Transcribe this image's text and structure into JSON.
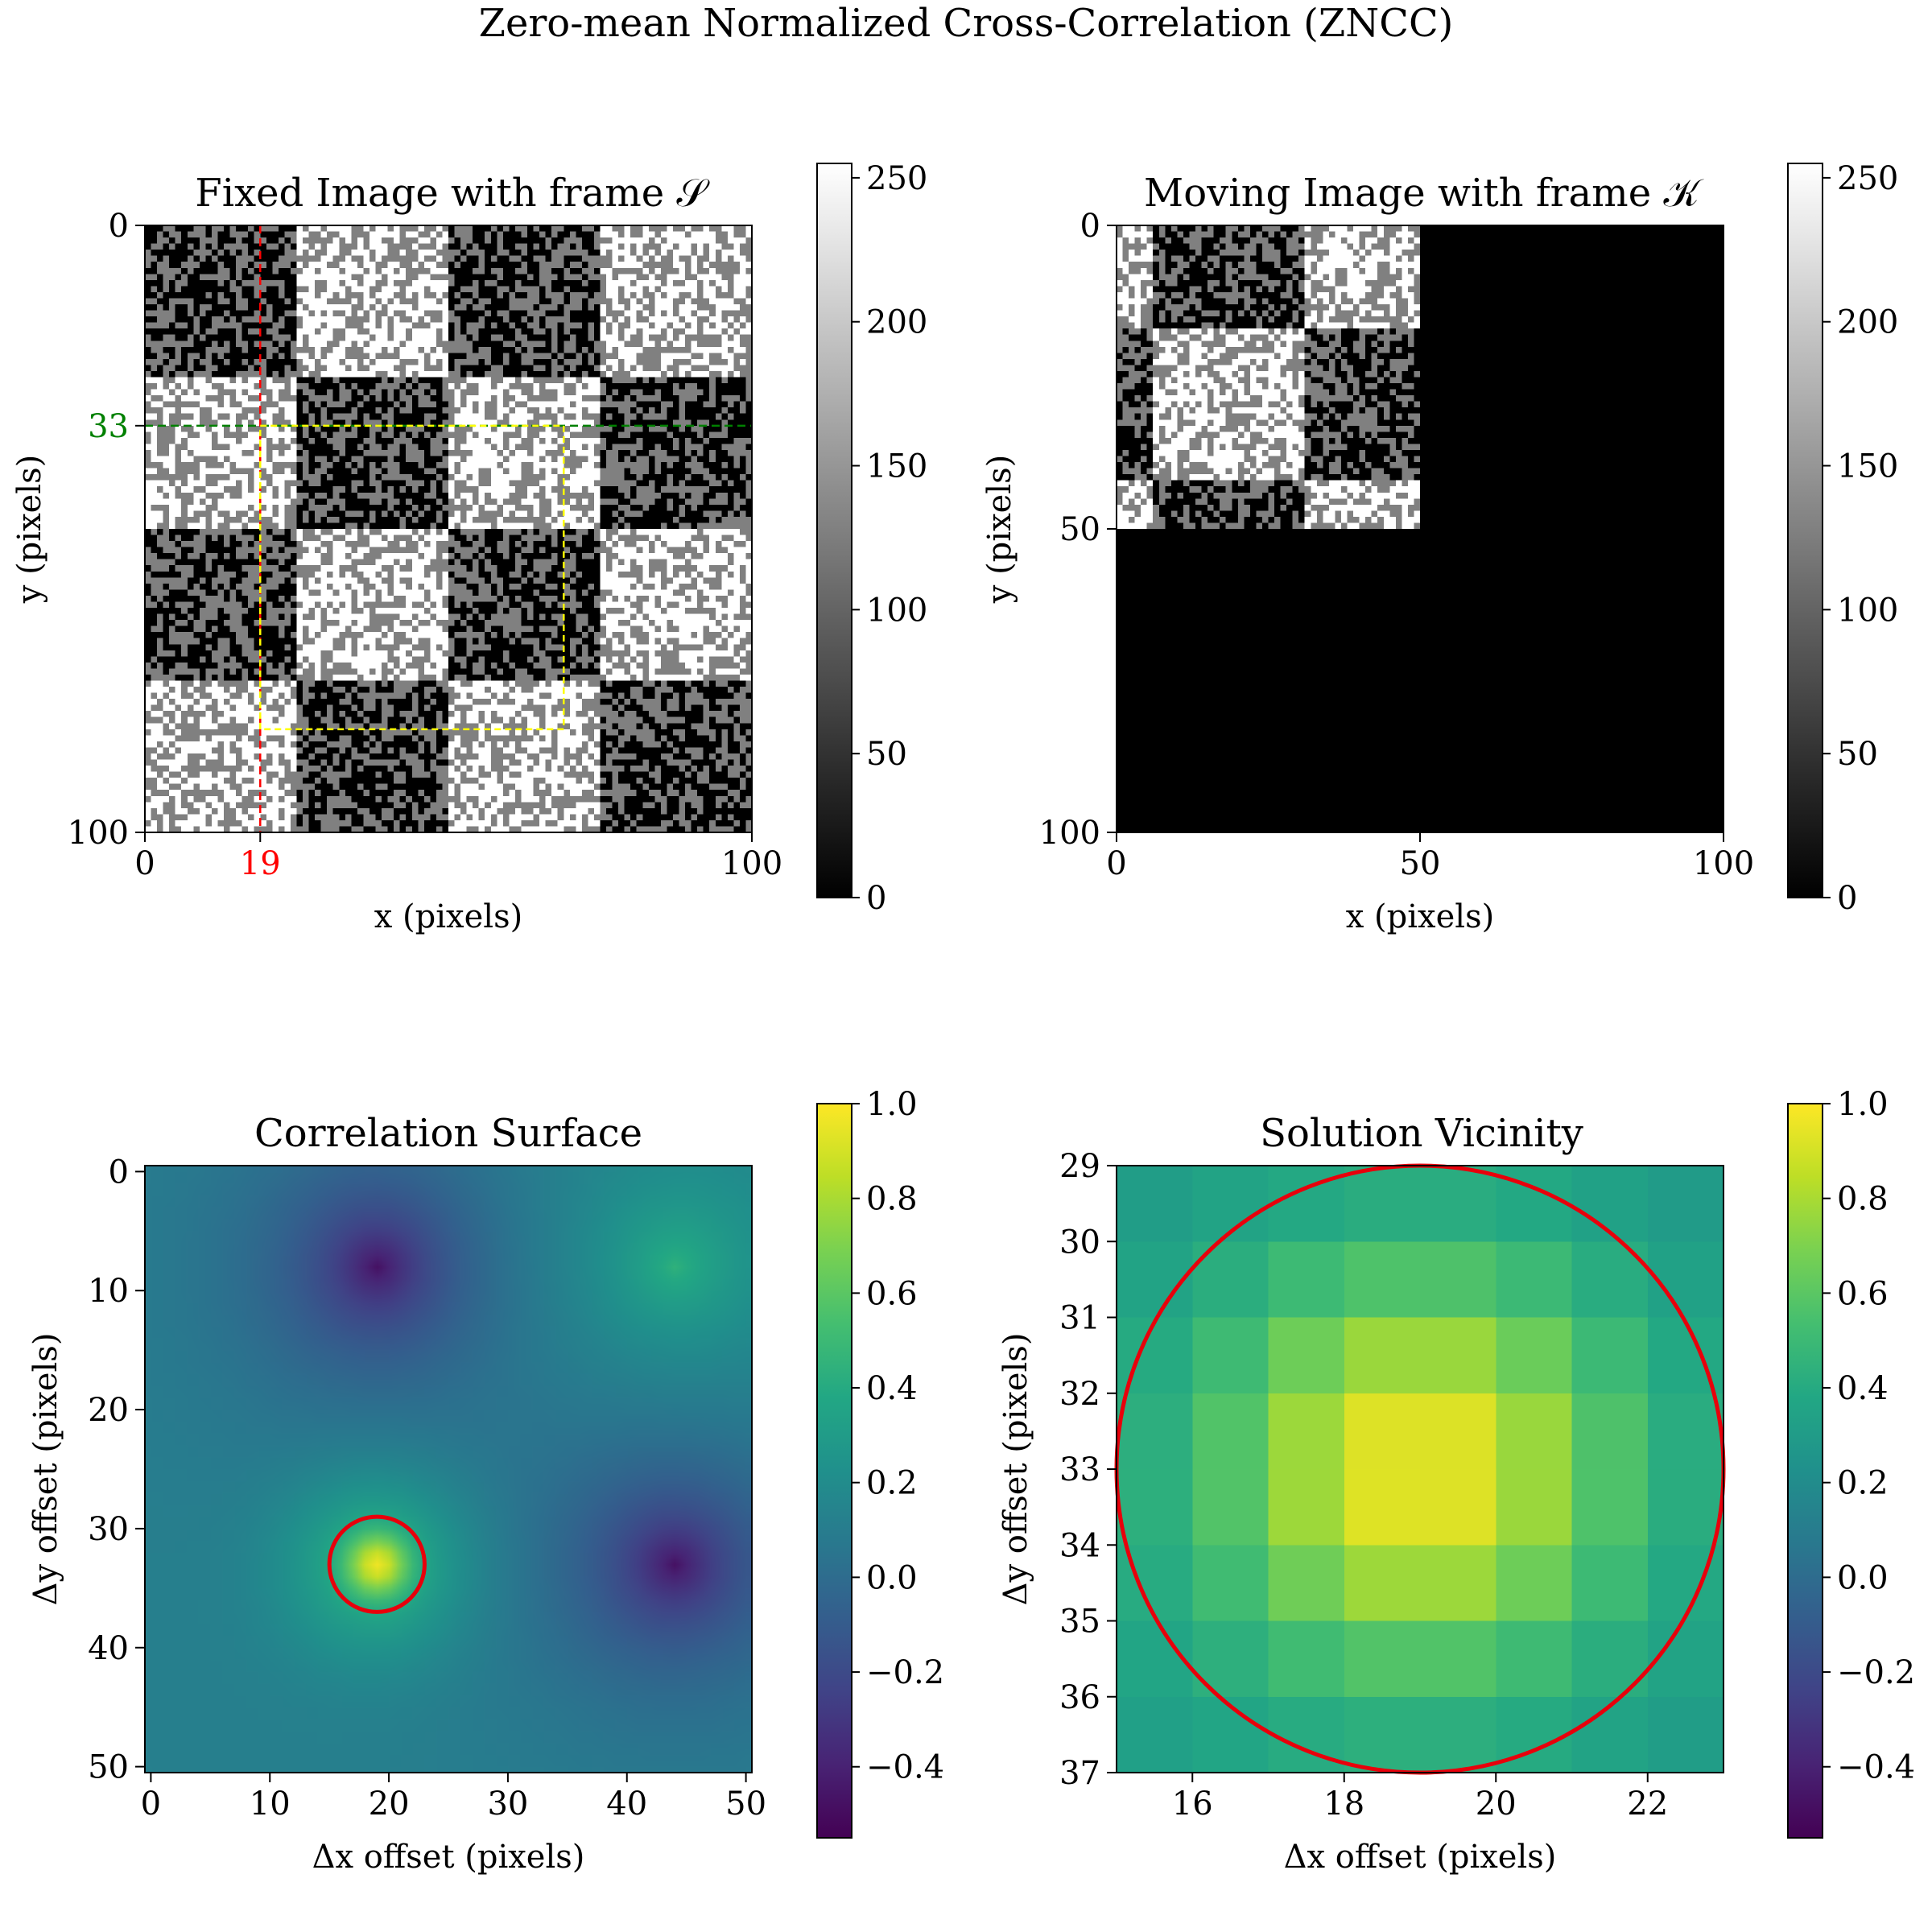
{
  "figure": {
    "suptitle": "Zero-mean Normalized Cross-Correlation (ZNCC)"
  },
  "chart_data": [
    {
      "type": "heatmap",
      "title": "Fixed Image with frame 𝒮",
      "xlabel": "x (pixels)",
      "ylabel": "y (pixels)",
      "xticks": [
        "0",
        "19",
        "100"
      ],
      "yticks": [
        "0",
        "33",
        "100"
      ],
      "xlim": [
        0,
        100
      ],
      "ylim": [
        100,
        0
      ],
      "colormap": "gray",
      "colorbar": {
        "range": [
          0,
          255
        ],
        "ticks": [
          "0",
          "50",
          "100",
          "150",
          "200",
          "250"
        ]
      },
      "image": {
        "size": [
          100,
          100
        ],
        "checker_block": 25,
        "block_base_row_major": [
          [
            0,
            1,
            0,
            1
          ],
          [
            1,
            0,
            1,
            0
          ],
          [
            0,
            1,
            0,
            1
          ],
          [
            1,
            0,
            1,
            0
          ]
        ],
        "note_levels": [
          0,
          128,
          255
        ]
      },
      "shift": {
        "x": 19,
        "y": 33,
        "dx": 19,
        "dy": 33
      },
      "annotations": [
        {
          "kind": "vline",
          "x": 19,
          "color": "#ff0000",
          "label": "19"
        },
        {
          "kind": "hline",
          "y": 33,
          "color": "#008000",
          "label": "33"
        },
        {
          "kind": "rect",
          "x": [
            19,
            69
          ],
          "y": [
            33,
            83
          ],
          "color": "#ffff00"
        }
      ]
    },
    {
      "type": "heatmap",
      "title": "Moving Image with frame 𝒦",
      "xlabel": "x (pixels)",
      "ylabel": "y (pixels)",
      "xticks": [
        "0",
        "50",
        "100"
      ],
      "yticks": [
        "0",
        "50",
        "100"
      ],
      "xlim": [
        0,
        100
      ],
      "ylim": [
        100,
        0
      ],
      "colormap": "gray",
      "colorbar": {
        "range": [
          0,
          255
        ],
        "ticks": [
          "0",
          "50",
          "100",
          "150",
          "200",
          "250"
        ]
      },
      "image": {
        "size": [
          100,
          100
        ],
        "content_extent": [
          50,
          50
        ],
        "background": 0
      }
    },
    {
      "type": "heatmap",
      "title": "Correlation Surface",
      "xlabel": "Δx offset (pixels)",
      "ylabel": "Δy offset (pixels)",
      "xticks": [
        "0",
        "10",
        "20",
        "30",
        "40",
        "50"
      ],
      "yticks": [
        "0",
        "10",
        "20",
        "30",
        "40",
        "50"
      ],
      "xlim": [
        -0.5,
        50.5
      ],
      "ylim": [
        50.5,
        -0.5
      ],
      "colormap": "viridis",
      "colorbar": {
        "range": [
          -0.55,
          1.0
        ],
        "ticks": [
          "1.0",
          "0.8",
          "0.6",
          "0.4",
          "0.2",
          "0.0",
          "−0.2",
          "−0.4"
        ]
      },
      "peaks": [
        {
          "x": 19,
          "y": 33,
          "value": 1.0
        },
        {
          "x": 44,
          "y": 8,
          "value": 0.52
        },
        {
          "x": 19,
          "y": 8,
          "value": -0.55
        },
        {
          "x": 44,
          "y": 33,
          "value": -0.55
        }
      ],
      "circle": {
        "cx": 19,
        "cy": 33,
        "r": 4,
        "color": "#e8000b"
      }
    },
    {
      "type": "heatmap",
      "title": "Solution Vicinity",
      "xlabel": "Δx offset (pixels)",
      "ylabel": "Δy offset (pixels)",
      "xticks": [
        "16",
        "18",
        "20",
        "22"
      ],
      "yticks": [
        "29",
        "30",
        "31",
        "32",
        "33",
        "34",
        "35",
        "36",
        "37"
      ],
      "xlim": [
        15,
        23
      ],
      "ylim": [
        37,
        29
      ],
      "colormap": "viridis",
      "colorbar": {
        "range": [
          -0.55,
          1.0
        ],
        "ticks": [
          "1.0",
          "0.8",
          "0.6",
          "0.4",
          "0.2",
          "0.0",
          "−0.2",
          "−0.4"
        ]
      },
      "peak": {
        "x": 19,
        "y": 33,
        "value": 1.0
      },
      "circle": {
        "cx": 19,
        "cy": 33,
        "r": 4,
        "color": "#e8000b"
      }
    }
  ]
}
